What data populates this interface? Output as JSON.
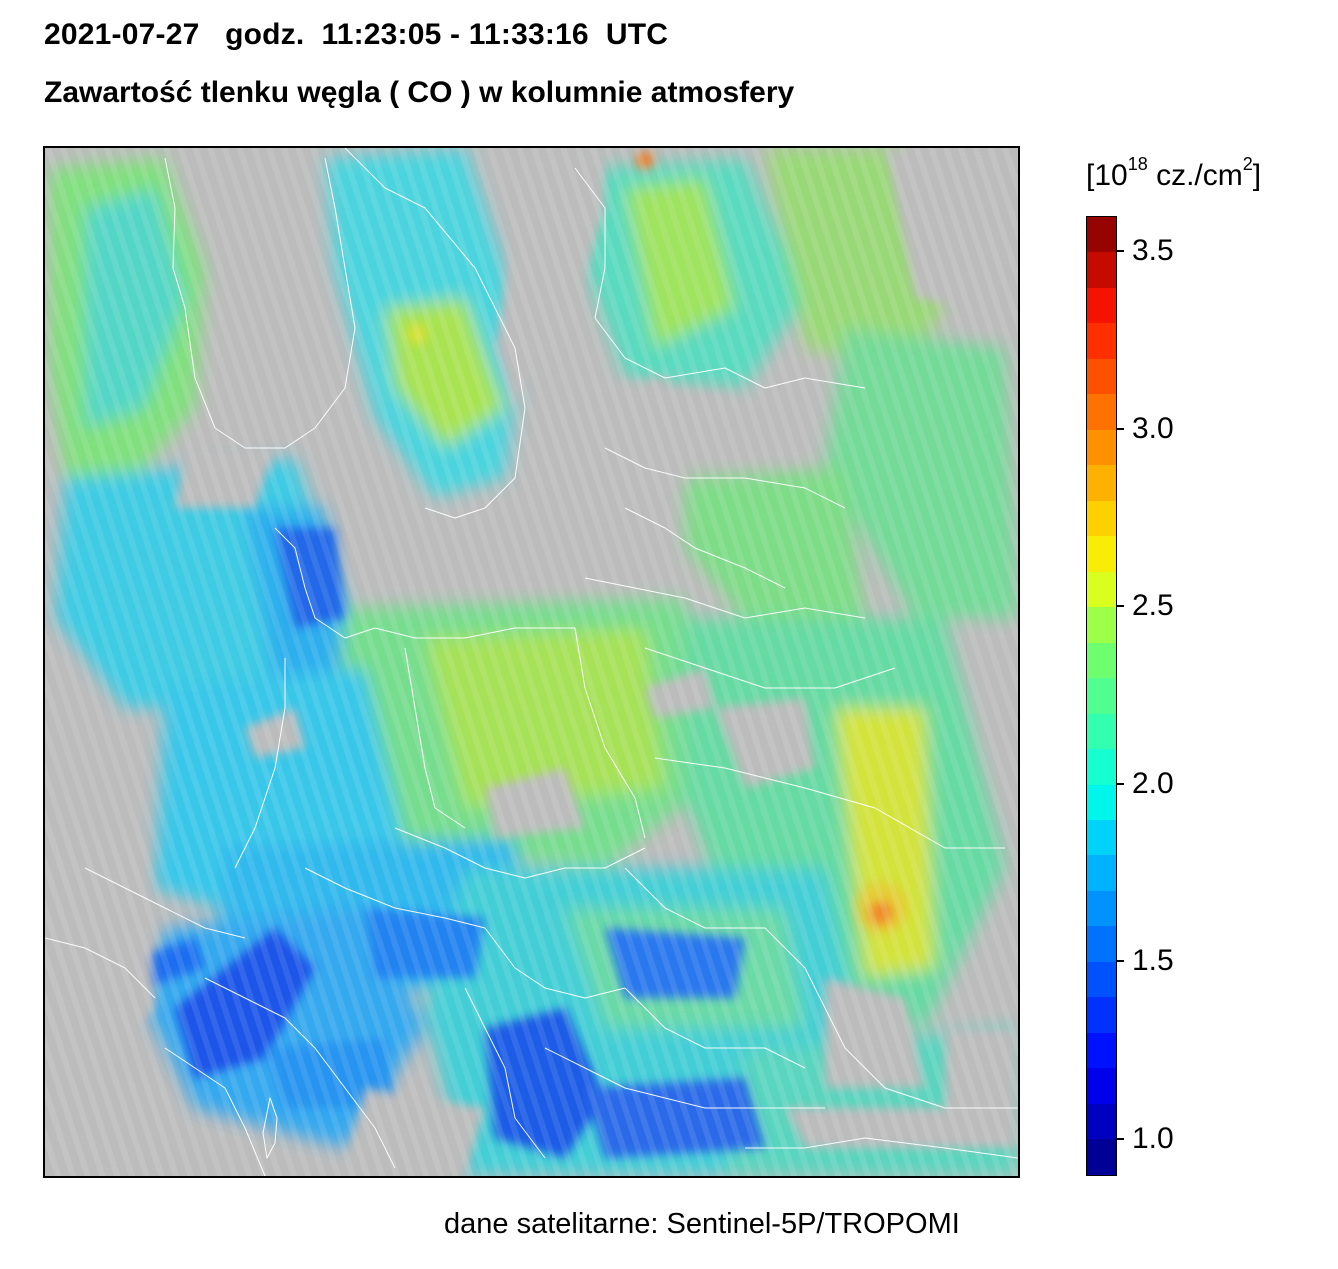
{
  "header": {
    "date": "2021-07-27",
    "time_label": "godz.",
    "time_range": "11:23:05 - 11:33:16",
    "timezone": "UTC",
    "title": "Zawartość tlenku węgla ( CO ) w kolumnie atmosfery"
  },
  "colorbar": {
    "unit_prefix": "[10",
    "unit_exp": "18",
    "unit_mid": " cz./cm",
    "unit_exp2": "2",
    "unit_suffix": "]",
    "min": 0.9,
    "max": 3.6,
    "ticks": [
      "1.0",
      "1.5",
      "2.0",
      "2.5",
      "3.0",
      "3.5"
    ],
    "tick_values": [
      1.0,
      1.5,
      2.0,
      2.5,
      3.0,
      3.5
    ]
  },
  "map": {
    "no_data_color": "#bcbcbc",
    "border_color": "#ffffff"
  },
  "footer": {
    "source": "dane satelitarne: Sentinel-5P/TROPOMI"
  }
}
